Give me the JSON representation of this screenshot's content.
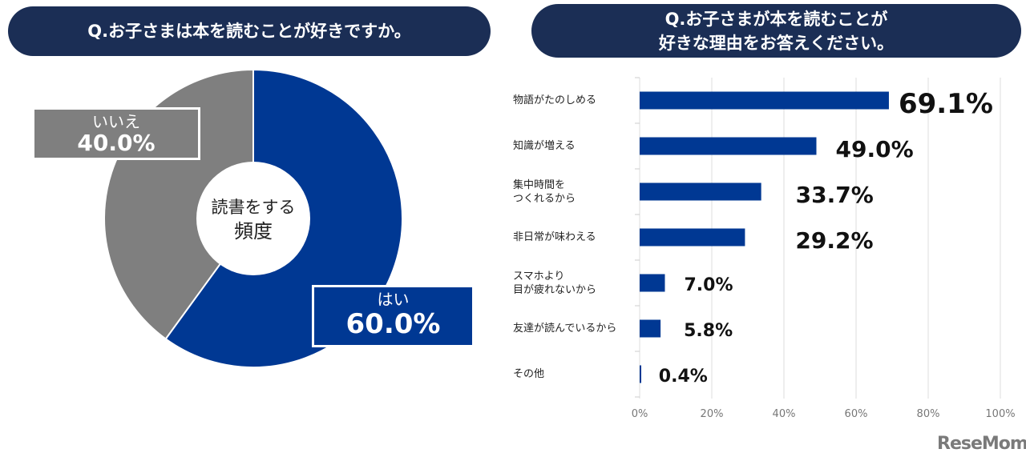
{
  "chart_data": [
    {
      "type": "pie",
      "title": "Q.お子さまは本を読むことが好きですか。",
      "center_label": [
        "読書をする",
        "頻度"
      ],
      "slices": [
        {
          "name": "はい",
          "value": 60.0,
          "label": "60.0%",
          "color": "#003893"
        },
        {
          "name": "いいえ",
          "value": 40.0,
          "label": "40.0%",
          "color": "#7f7f7f"
        }
      ]
    },
    {
      "type": "bar",
      "orientation": "horizontal",
      "title": [
        "Q.お子さまが本を読むことが",
        "好きな理由をお答えください。"
      ],
      "categories": [
        [
          "物語がたのしめる"
        ],
        [
          "知識が増える"
        ],
        [
          "集中時間を",
          "つくれるから"
        ],
        [
          "非日常が味わえる"
        ],
        [
          "スマホより",
          "目が疲れないから"
        ],
        [
          "友達が読んでいるから"
        ],
        [
          "その他"
        ]
      ],
      "values": [
        69.1,
        49.0,
        33.7,
        29.2,
        7.0,
        5.8,
        0.4
      ],
      "value_labels": [
        "69.1%",
        "49.0%",
        "33.7%",
        "29.2%",
        "7.0%",
        "5.8%",
        "0.4%"
      ],
      "xlim": [
        0,
        100
      ],
      "xticks": [
        "0%",
        "20%",
        "40%",
        "60%",
        "80%",
        "100%"
      ],
      "grid": true,
      "color": "#003893"
    }
  ],
  "logo": "ReseMom"
}
